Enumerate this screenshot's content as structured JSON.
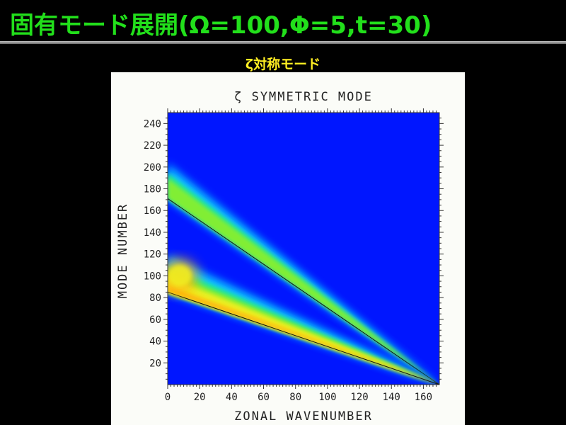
{
  "slide": {
    "title": "固有モード展開(Ω=100,Φ=5,t=30)",
    "subtitle": "ζ対称モード"
  },
  "colors": {
    "title": "#22e01b",
    "subtitle": "#ffee22",
    "background": "#000000",
    "panel": "#fbfcf8",
    "colormap": [
      "#0016ff",
      "#0a8cff",
      "#10d8ff",
      "#25e888",
      "#8cf02a",
      "#f0f020",
      "#ffb010"
    ]
  },
  "chart_data": {
    "type": "heatmap",
    "title": "ζ SYMMETRIC MODE",
    "xlabel": "ZONAL WAVENUMBER",
    "ylabel": "MODE NUMBER",
    "xlim": [
      0,
      170
    ],
    "ylim": [
      0,
      250
    ],
    "xticks": [
      0,
      20,
      40,
      60,
      80,
      100,
      120,
      140,
      160
    ],
    "yticks": [
      20,
      40,
      60,
      80,
      100,
      120,
      140,
      160,
      180,
      200,
      220,
      240
    ],
    "background_level": 0,
    "bands": [
      {
        "name": "upper",
        "line": {
          "x": [
            0,
            170
          ],
          "y": [
            171,
            0
          ]
        },
        "spread_upward": 38,
        "peak_level": 0.62
      },
      {
        "name": "lower",
        "line": {
          "x": [
            0,
            170
          ],
          "y": [
            85,
            0
          ]
        },
        "spread_upward": 40,
        "peak_level": 0.95
      }
    ],
    "hotspot": {
      "x": [
        0,
        15
      ],
      "y": [
        85,
        115
      ],
      "level": 1.0
    }
  }
}
